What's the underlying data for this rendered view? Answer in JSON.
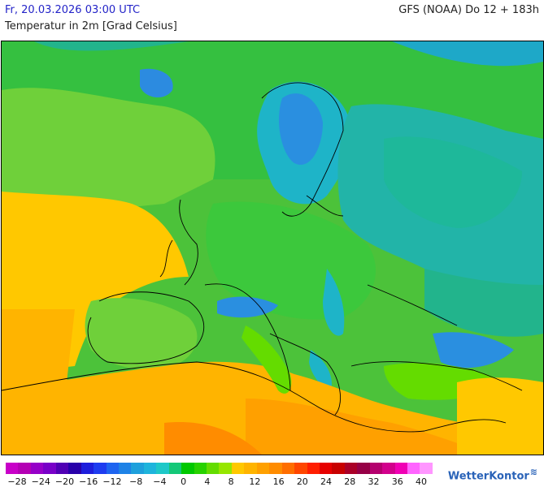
{
  "header": {
    "valid_time": "Fr, 20.03.2026 03:00 UTC",
    "model_run": "GFS (NOAA) Do 12 + 183h",
    "variable": "Temperatur in 2m [Grad Celsius]"
  },
  "legend": {
    "colors": [
      "#c800c8",
      "#b400b4",
      "#9600c8",
      "#7800c8",
      "#5000b4",
      "#2800aa",
      "#1e1edc",
      "#1e3cf0",
      "#1e64f0",
      "#1e82e6",
      "#1ea0dc",
      "#1eb4dc",
      "#1ec8c8",
      "#14c878",
      "#00c800",
      "#28d200",
      "#64dc00",
      "#96e600",
      "#ffc800",
      "#ffb400",
      "#ffa000",
      "#ff8c00",
      "#ff6e00",
      "#ff4600",
      "#ff1e00",
      "#e60000",
      "#c80000",
      "#aa0028",
      "#960046",
      "#b4006e",
      "#d2008c",
      "#f000b4",
      "#ff64ff",
      "#ff96ff"
    ],
    "ticks": [
      "−28",
      "−24",
      "−20",
      "−16",
      "−12",
      "−8",
      "−4",
      "0",
      "4",
      "8",
      "12",
      "16",
      "20",
      "24",
      "28",
      "32",
      "36",
      "40"
    ]
  },
  "brand": {
    "name": "WetterKontor"
  }
}
